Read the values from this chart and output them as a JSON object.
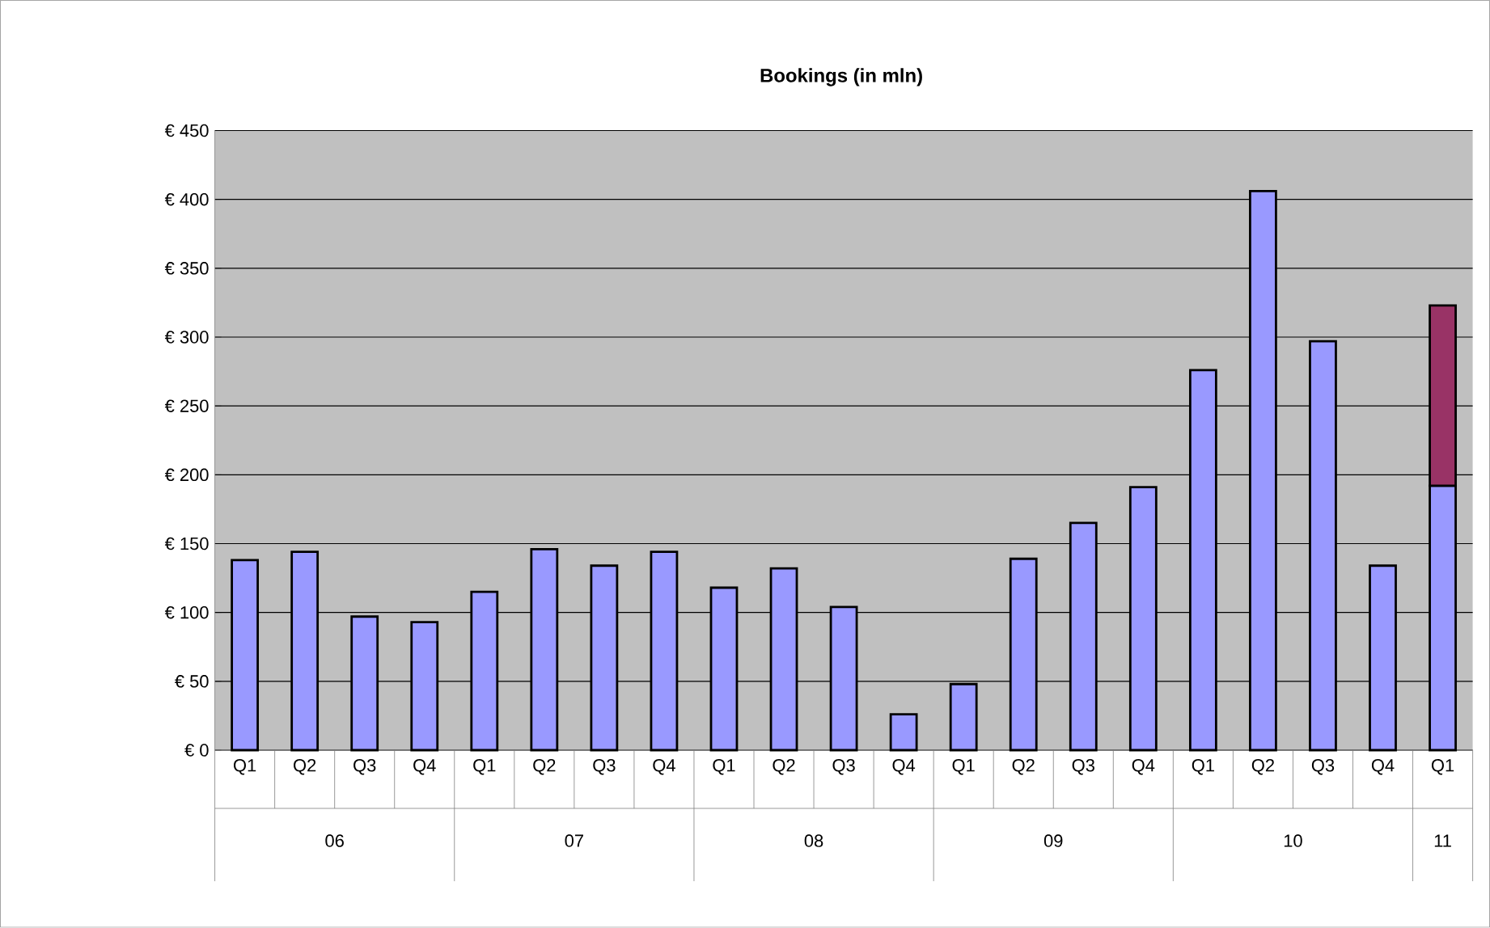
{
  "chart_data": {
    "type": "bar",
    "title": "Bookings (in mln)",
    "stacked": true,
    "grid": "y",
    "categories": [
      "Q1",
      "Q2",
      "Q3",
      "Q4",
      "Q1",
      "Q2",
      "Q3",
      "Q4",
      "Q1",
      "Q2",
      "Q3",
      "Q4",
      "Q1",
      "Q2",
      "Q3",
      "Q4",
      "Q1",
      "Q2",
      "Q3",
      "Q4",
      "Q1"
    ],
    "series": [
      {
        "color": "#9999ff",
        "values": [
          138,
          144,
          97,
          93,
          115,
          146,
          134,
          144,
          118,
          132,
          104,
          26,
          48,
          139,
          165,
          191,
          276,
          406,
          297,
          134,
          192
        ]
      },
      {
        "color": "#993366",
        "values": [
          null,
          null,
          null,
          null,
          null,
          null,
          null,
          null,
          null,
          null,
          null,
          null,
          null,
          null,
          null,
          null,
          null,
          null,
          null,
          null,
          131
        ]
      }
    ],
    "ylim": [
      0,
      450
    ],
    "yticks": [
      {
        "value": 0,
        "label": "€ 0"
      },
      {
        "value": 50,
        "label": "€ 50"
      },
      {
        "value": 100,
        "label": "€ 100"
      },
      {
        "value": 150,
        "label": "€ 150"
      },
      {
        "value": 200,
        "label": "€ 200"
      },
      {
        "value": 250,
        "label": "€ 250"
      },
      {
        "value": 300,
        "label": "€ 300"
      },
      {
        "value": 350,
        "label": "€ 350"
      },
      {
        "value": 400,
        "label": "€ 400"
      },
      {
        "value": 450,
        "label": "€ 450"
      }
    ],
    "annotations": [
      "06",
      "07",
      "08",
      "09",
      "10",
      "11"
    ]
  }
}
